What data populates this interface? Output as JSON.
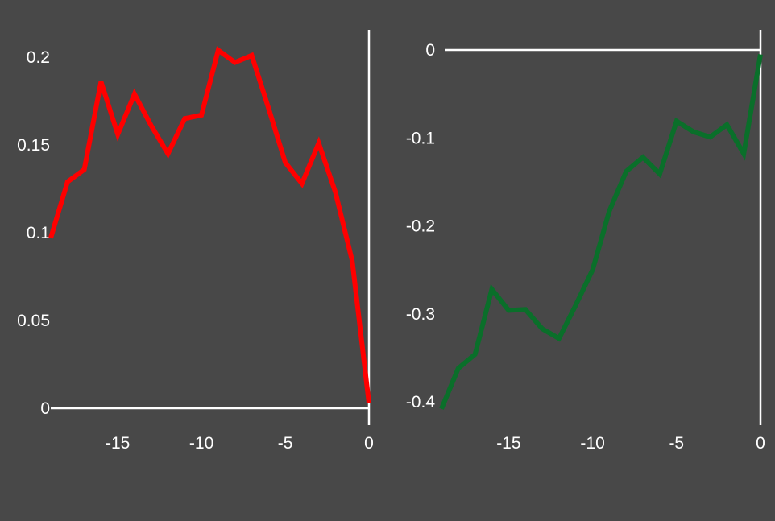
{
  "background": "#484848",
  "axis_color": "#ffffff",
  "chart_data": [
    {
      "type": "line",
      "title": "",
      "xlabel": "",
      "ylabel": "",
      "grid": false,
      "xlim": [
        -19,
        0
      ],
      "ylim": [
        0,
        0.21
      ],
      "xticks": [
        -15,
        -10,
        -5,
        0
      ],
      "xtick_labels": [
        "-15",
        "-10",
        "-5",
        "0"
      ],
      "yticks": [
        0,
        0.05,
        0.1,
        0.15,
        0.2
      ],
      "ytick_labels": [
        "0",
        "0.05",
        "0.1",
        "0.15",
        "0.2"
      ],
      "x": [
        -19,
        -18,
        -17,
        -16,
        -15,
        -14,
        -13,
        -12,
        -11,
        -10,
        -9,
        -8,
        -7,
        -6,
        -5,
        -4,
        -3,
        -2,
        -1,
        0
      ],
      "series": [
        {
          "color": "#ff0000",
          "values": [
            0.097,
            0.129,
            0.136,
            0.186,
            0.156,
            0.179,
            0.161,
            0.145,
            0.165,
            0.167,
            0.204,
            0.197,
            0.201,
            0.171,
            0.14,
            0.128,
            0.151,
            0.123,
            0.084,
            0.003
          ]
        }
      ]
    },
    {
      "type": "line",
      "title": "",
      "xlabel": "",
      "ylabel": "",
      "grid": false,
      "xlim": [
        -19,
        0
      ],
      "ylim": [
        -0.41,
        0.01
      ],
      "xticks": [
        -15,
        -10,
        -5,
        0
      ],
      "xtick_labels": [
        "-15",
        "-10",
        "-5",
        "0"
      ],
      "yticks": [
        0,
        -0.1,
        -0.2,
        -0.3,
        -0.4
      ],
      "ytick_labels": [
        "0",
        "-0.1",
        "-0.2",
        "-0.3",
        "-0.4"
      ],
      "x": [
        -19,
        -18,
        -17,
        -16,
        -15,
        -14,
        -13,
        -12,
        -11,
        -10,
        -9,
        -8,
        -7,
        -6,
        -5,
        -4,
        -3,
        -2,
        -1,
        0
      ],
      "series": [
        {
          "color": "#0a6f2a",
          "values": [
            -0.408,
            -0.362,
            -0.346,
            -0.272,
            -0.296,
            -0.295,
            -0.317,
            -0.328,
            -0.29,
            -0.25,
            -0.183,
            -0.138,
            -0.122,
            -0.141,
            -0.081,
            -0.093,
            -0.099,
            -0.085,
            -0.118,
            -0.005
          ]
        }
      ]
    }
  ]
}
